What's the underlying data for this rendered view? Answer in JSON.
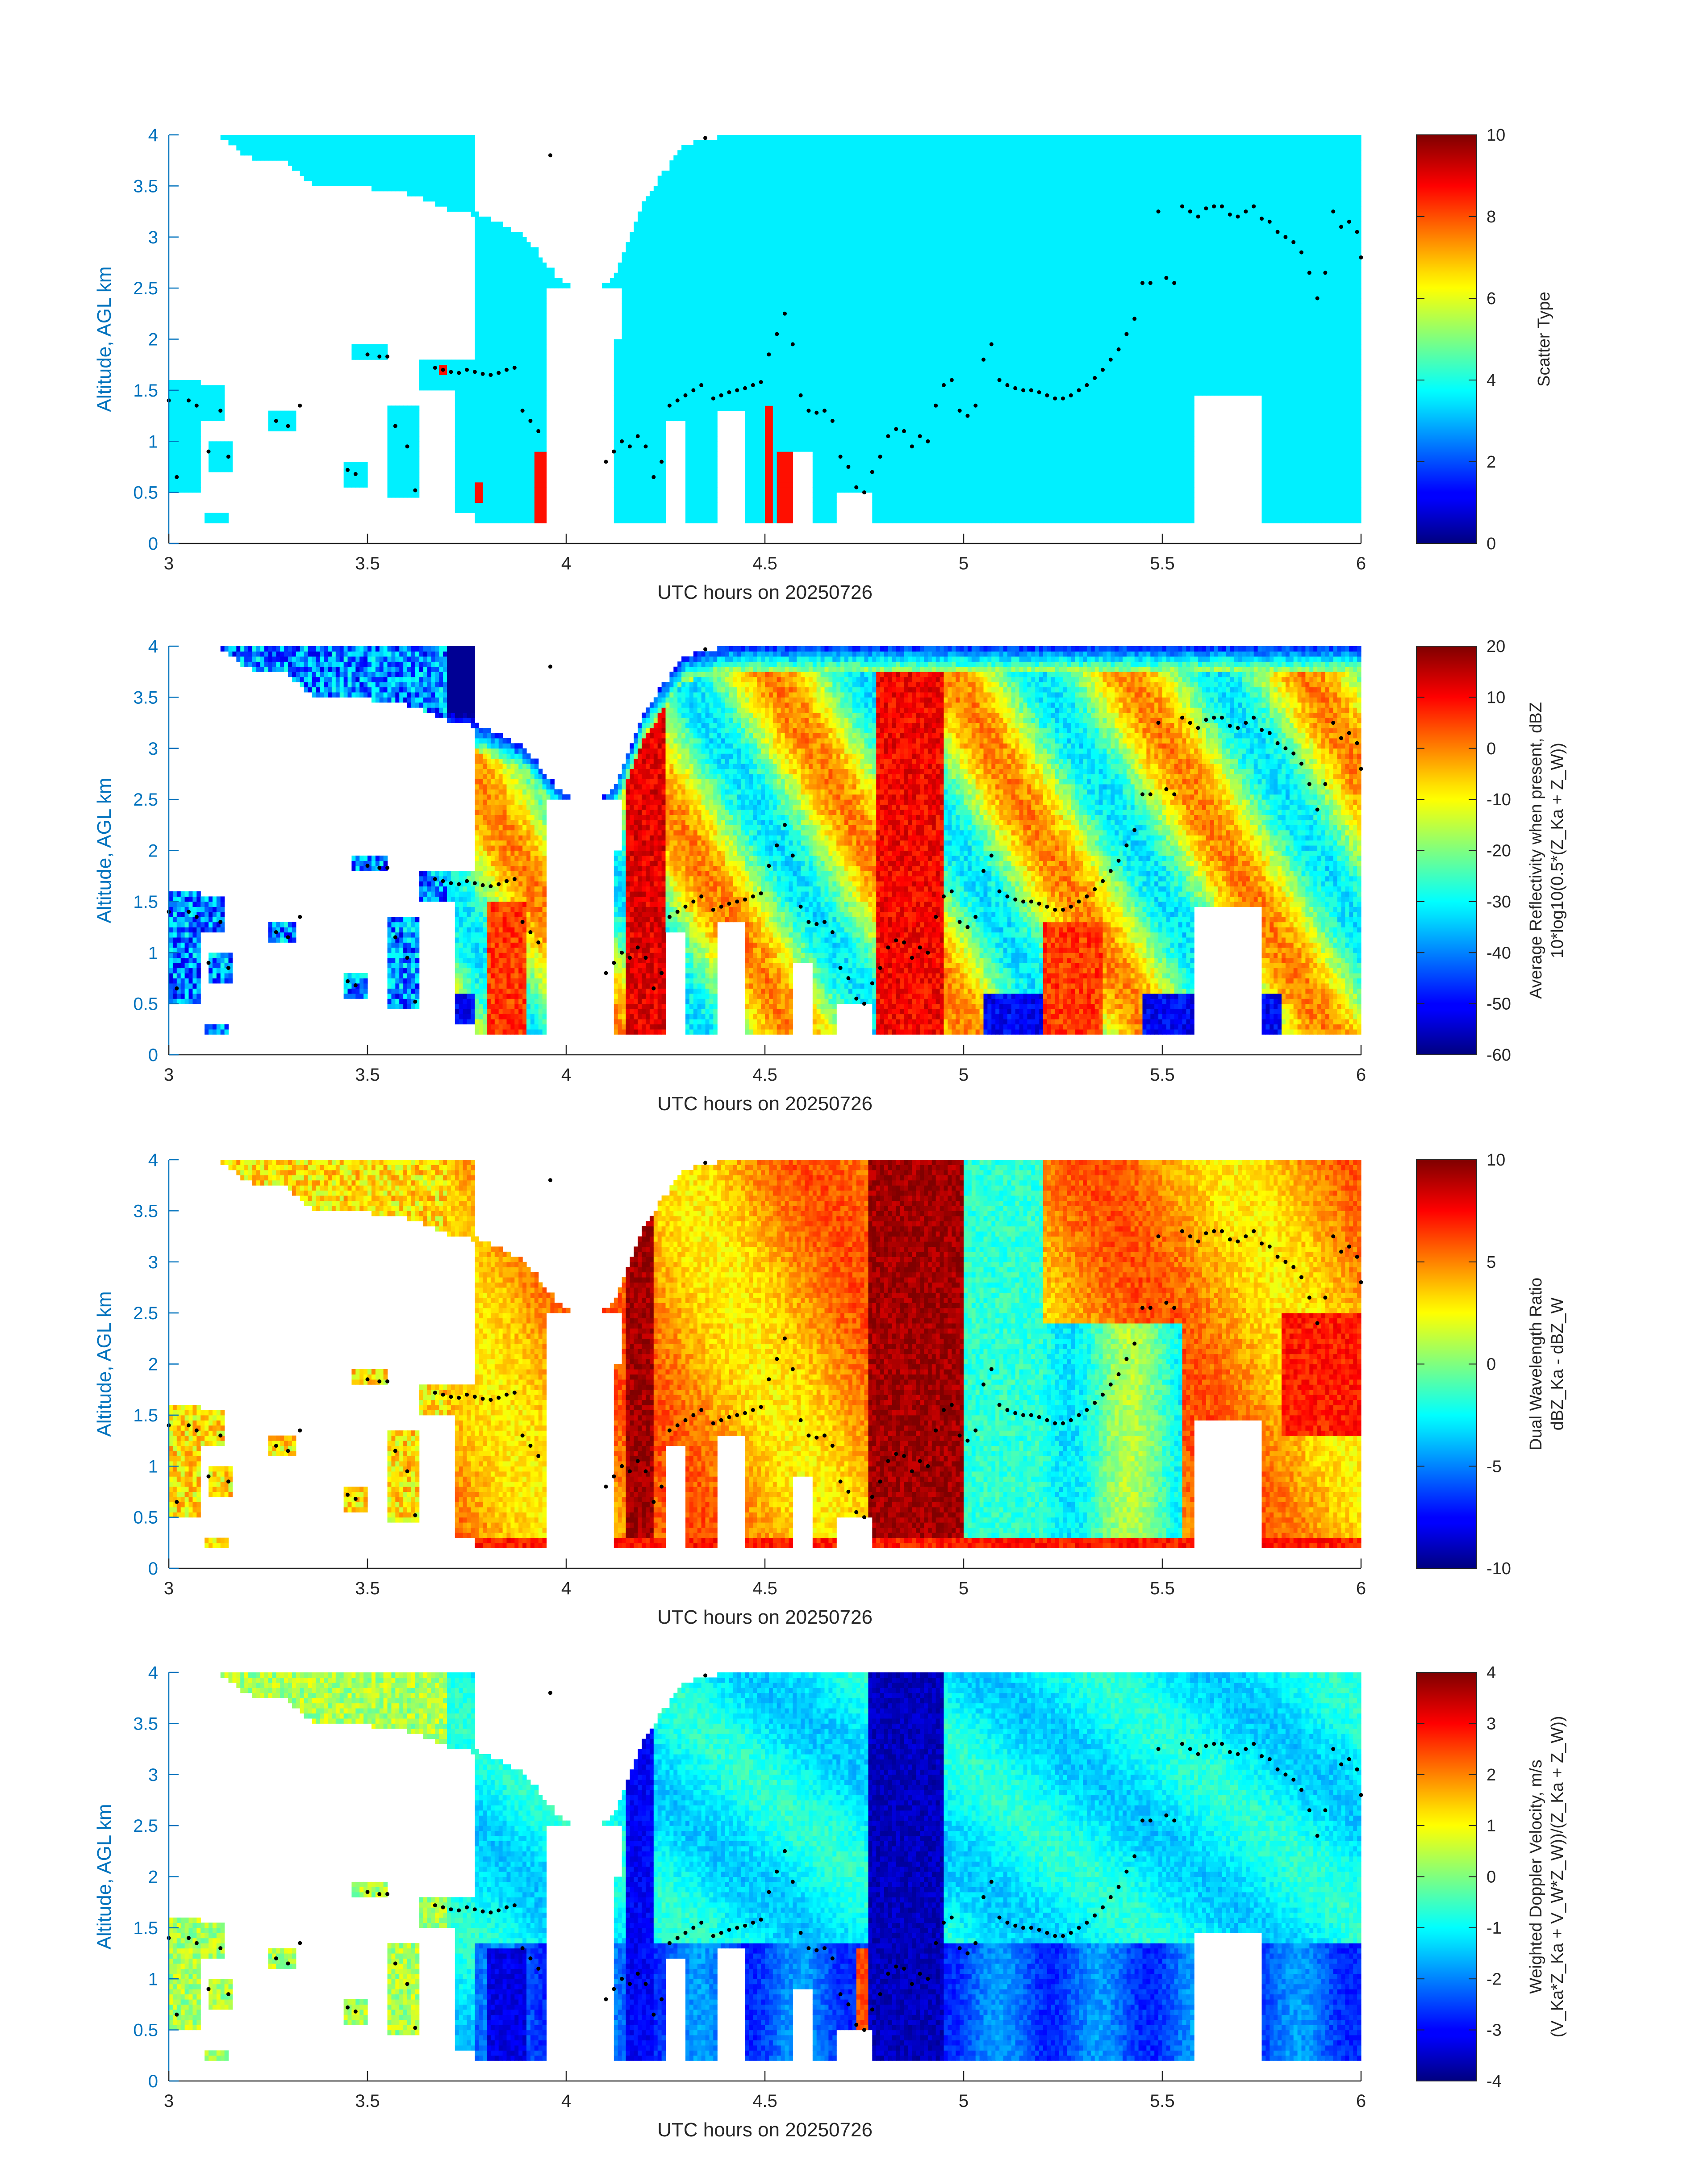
{
  "chart_data": [
    {
      "type": "heatmap",
      "panel": "scatter-type",
      "xlabel": "UTC hours on 20250726",
      "ylabel": "Altitude, AGL km",
      "xlim": [
        3,
        6
      ],
      "ylim": [
        0,
        4
      ],
      "xticks": [
        "3",
        "3.5",
        "4",
        "4.5",
        "5",
        "5.5",
        "6"
      ],
      "yticks": [
        "0",
        "0.5",
        "1",
        "1.5",
        "2",
        "2.5",
        "3",
        "3.5",
        "4"
      ],
      "colorbar": {
        "label": "Scatter Type",
        "label2": "",
        "range": [
          0,
          10
        ],
        "ticks": [
          "0",
          "2",
          "4",
          "6",
          "8",
          "10"
        ]
      },
      "colormap": "jet",
      "dominant_value": 3.6,
      "secondary_value": 8.6,
      "overlay": "black dotted cloud-layer markers"
    },
    {
      "type": "heatmap",
      "panel": "average-reflectivity",
      "xlabel": "UTC hours on 20250726",
      "ylabel": "Altitude, AGL km",
      "xlim": [
        3,
        6
      ],
      "ylim": [
        0,
        4
      ],
      "xticks": [
        "3",
        "3.5",
        "4",
        "4.5",
        "5",
        "5.5",
        "6"
      ],
      "yticks": [
        "0",
        "0.5",
        "1",
        "1.5",
        "2",
        "2.5",
        "3",
        "3.5",
        "4"
      ],
      "colorbar": {
        "label": "Average Reflectivity when present, dBZ",
        "label2": "10*log10(0.5*(Z_Ka + Z_W))",
        "range": [
          -60,
          20
        ],
        "ticks": [
          "-60",
          "-50",
          "-40",
          "-30",
          "-20",
          "-10",
          "0",
          "10",
          "20"
        ]
      },
      "colormap": "jet",
      "overlay": "black dotted cloud-layer markers"
    },
    {
      "type": "heatmap",
      "panel": "dual-wavelength-ratio",
      "xlabel": "UTC hours on 20250726",
      "ylabel": "Altitude, AGL km",
      "xlim": [
        3,
        6
      ],
      "ylim": [
        0,
        4
      ],
      "xticks": [
        "3",
        "3.5",
        "4",
        "4.5",
        "5",
        "5.5",
        "6"
      ],
      "yticks": [
        "0",
        "0.5",
        "1",
        "1.5",
        "2",
        "2.5",
        "3",
        "3.5",
        "4"
      ],
      "colorbar": {
        "label": "Dual Wavelength Ratio",
        "label2": "dBZ_Ka - dBZ_W",
        "range": [
          -10,
          10
        ],
        "ticks": [
          "-10",
          "-5",
          "0",
          "5",
          "10"
        ]
      },
      "colormap": "jet",
      "overlay": "black dotted cloud-layer markers"
    },
    {
      "type": "heatmap",
      "panel": "weighted-doppler-velocity",
      "xlabel": "UTC hours on 20250726",
      "ylabel": "Altitude, AGL km",
      "xlim": [
        3,
        6
      ],
      "ylim": [
        0,
        4
      ],
      "xticks": [
        "3",
        "3.5",
        "4",
        "4.5",
        "5",
        "5.5",
        "6"
      ],
      "yticks": [
        "0",
        "0.5",
        "1",
        "1.5",
        "2",
        "2.5",
        "3",
        "3.5",
        "4"
      ],
      "colorbar": {
        "label": "Weighted Doppler Velocity, m/s",
        "label2": "(V_Ka*Z_Ka + V_W*Z_W))/(Z_Ka + Z_W))",
        "range": [
          -4,
          4
        ],
        "ticks": [
          "-4",
          "-3",
          "-2",
          "-1",
          "0",
          "1",
          "2",
          "3",
          "4"
        ]
      },
      "colormap": "jet",
      "overlay": "black dotted cloud-layer markers"
    }
  ],
  "cloud_markers": [
    [
      3.0,
      1.4
    ],
    [
      3.02,
      0.65
    ],
    [
      3.05,
      1.4
    ],
    [
      3.07,
      1.35
    ],
    [
      3.1,
      0.9
    ],
    [
      3.13,
      1.3
    ],
    [
      3.15,
      0.85
    ],
    [
      3.27,
      1.2
    ],
    [
      3.3,
      1.15
    ],
    [
      3.33,
      1.35
    ],
    [
      3.45,
      0.72
    ],
    [
      3.47,
      0.68
    ],
    [
      3.5,
      1.85
    ],
    [
      3.53,
      1.83
    ],
    [
      3.55,
      1.83
    ],
    [
      3.57,
      1.15
    ],
    [
      3.6,
      0.95
    ],
    [
      3.62,
      0.52
    ],
    [
      3.67,
      1.72
    ],
    [
      3.69,
      1.7
    ],
    [
      3.71,
      1.68
    ],
    [
      3.73,
      1.67
    ],
    [
      3.75,
      1.7
    ],
    [
      3.77,
      1.68
    ],
    [
      3.79,
      1.66
    ],
    [
      3.81,
      1.65
    ],
    [
      3.83,
      1.67
    ],
    [
      3.85,
      1.7
    ],
    [
      3.87,
      1.72
    ],
    [
      3.89,
      1.3
    ],
    [
      3.91,
      1.2
    ],
    [
      3.93,
      1.1
    ],
    [
      3.96,
      3.8
    ],
    [
      4.1,
      0.8
    ],
    [
      4.12,
      0.9
    ],
    [
      4.14,
      1.0
    ],
    [
      4.16,
      0.95
    ],
    [
      4.18,
      1.05
    ],
    [
      4.2,
      0.95
    ],
    [
      4.22,
      0.65
    ],
    [
      4.24,
      0.8
    ],
    [
      4.26,
      1.35
    ],
    [
      4.28,
      1.4
    ],
    [
      4.3,
      1.45
    ],
    [
      4.32,
      1.5
    ],
    [
      4.34,
      1.55
    ],
    [
      4.35,
      3.97
    ],
    [
      4.37,
      1.42
    ],
    [
      4.39,
      1.45
    ],
    [
      4.41,
      1.48
    ],
    [
      4.43,
      1.5
    ],
    [
      4.45,
      1.52
    ],
    [
      4.47,
      1.55
    ],
    [
      4.49,
      1.58
    ],
    [
      4.51,
      1.85
    ],
    [
      4.53,
      2.05
    ],
    [
      4.55,
      2.25
    ],
    [
      4.57,
      1.95
    ],
    [
      4.59,
      1.45
    ],
    [
      4.61,
      1.3
    ],
    [
      4.63,
      1.28
    ],
    [
      4.65,
      1.3
    ],
    [
      4.67,
      1.2
    ],
    [
      4.69,
      0.85
    ],
    [
      4.71,
      0.75
    ],
    [
      4.73,
      0.55
    ],
    [
      4.75,
      0.5
    ],
    [
      4.77,
      0.7
    ],
    [
      4.79,
      0.85
    ],
    [
      4.81,
      1.05
    ],
    [
      4.83,
      1.12
    ],
    [
      4.85,
      1.1
    ],
    [
      4.87,
      0.95
    ],
    [
      4.89,
      1.05
    ],
    [
      4.91,
      1.0
    ],
    [
      4.93,
      1.35
    ],
    [
      4.95,
      1.55
    ],
    [
      4.97,
      1.6
    ],
    [
      4.99,
      1.3
    ],
    [
      5.01,
      1.25
    ],
    [
      5.03,
      1.35
    ],
    [
      5.05,
      1.8
    ],
    [
      5.07,
      1.95
    ],
    [
      5.09,
      1.6
    ],
    [
      5.11,
      1.55
    ],
    [
      5.13,
      1.52
    ],
    [
      5.15,
      1.5
    ],
    [
      5.17,
      1.5
    ],
    [
      5.19,
      1.48
    ],
    [
      5.21,
      1.45
    ],
    [
      5.23,
      1.42
    ],
    [
      5.25,
      1.42
    ],
    [
      5.27,
      1.45
    ],
    [
      5.29,
      1.5
    ],
    [
      5.31,
      1.55
    ],
    [
      5.33,
      1.62
    ],
    [
      5.35,
      1.7
    ],
    [
      5.37,
      1.8
    ],
    [
      5.39,
      1.9
    ],
    [
      5.41,
      2.05
    ],
    [
      5.43,
      2.2
    ],
    [
      5.45,
      2.55
    ],
    [
      5.47,
      2.55
    ],
    [
      5.49,
      3.25
    ],
    [
      5.51,
      2.6
    ],
    [
      5.53,
      2.55
    ],
    [
      5.55,
      3.3
    ],
    [
      5.57,
      3.25
    ],
    [
      5.59,
      3.2
    ],
    [
      5.61,
      3.28
    ],
    [
      5.63,
      3.3
    ],
    [
      5.65,
      3.3
    ],
    [
      5.67,
      3.22
    ],
    [
      5.69,
      3.2
    ],
    [
      5.71,
      3.25
    ],
    [
      5.73,
      3.3
    ],
    [
      5.75,
      3.18
    ],
    [
      5.77,
      3.15
    ],
    [
      5.79,
      3.05
    ],
    [
      5.81,
      3.0
    ],
    [
      5.83,
      2.95
    ],
    [
      5.85,
      2.85
    ],
    [
      5.87,
      2.65
    ],
    [
      5.89,
      2.4
    ],
    [
      5.91,
      2.65
    ],
    [
      5.93,
      3.25
    ],
    [
      5.95,
      3.1
    ],
    [
      5.97,
      3.15
    ],
    [
      5.99,
      3.05
    ],
    [
      6.0,
      2.8
    ]
  ],
  "colors": {
    "ylabel_blue": "#0072bd",
    "axis_text": "#262626",
    "marker": "#000000"
  }
}
